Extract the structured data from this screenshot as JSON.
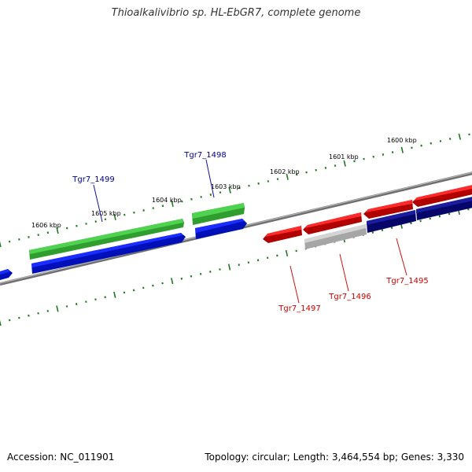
{
  "title": "Thioalkalivibrio sp. HL-EbGR7, complete genome",
  "footer": {
    "accession": "Accession: NC_011901",
    "topology": "Topology: circular; Length: 3,464,554 bp; Genes: 3,330"
  },
  "ruler_labels": [
    "1600 kbp",
    "1601 kbp",
    "1602 kbp",
    "1603 kbp",
    "1604 kbp",
    "1605 kbp",
    "1606 kbp"
  ],
  "gene_labels": [
    {
      "text": "Tgr7_1499",
      "color": "#00008b"
    },
    {
      "text": "Tgr7_1498",
      "color": "#00008b"
    },
    {
      "text": "Tgr7_1497",
      "color": "#cc0000"
    },
    {
      "text": "Tgr7_1496",
      "color": "#cc0000"
    },
    {
      "text": "Tgr7_1495",
      "color": "#cc0000"
    }
  ],
  "colors": {
    "cds_green": "#3cc43c",
    "cds_blue": "#0a14e8",
    "cds_red": "#e81010",
    "cds_gray": "#bdbdbd",
    "cds_navy": "#0a0a80",
    "backbone": "#7a7a7a",
    "tick": "#1f7a1f"
  }
}
